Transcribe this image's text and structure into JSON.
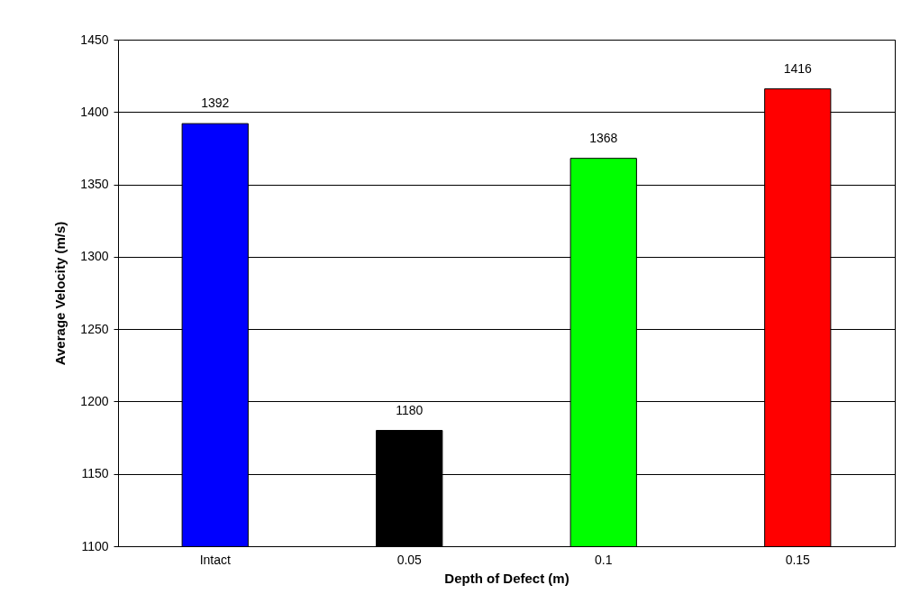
{
  "chart_data": {
    "type": "bar",
    "xlabel": "Depth of Defect (m)",
    "ylabel": "Average Velocity (m/s)",
    "categories": [
      "Intact",
      "0.05",
      "0.1",
      "0.15"
    ],
    "values": [
      1392,
      1180,
      1368,
      1416
    ],
    "colors": [
      "#0000ff",
      "#000000",
      "#00ff00",
      "#ff0000"
    ],
    "ylim": [
      1100,
      1450
    ],
    "yticks": [
      1100,
      1150,
      1200,
      1250,
      1300,
      1350,
      1400,
      1450
    ],
    "grid": "y",
    "data_labels": true
  }
}
